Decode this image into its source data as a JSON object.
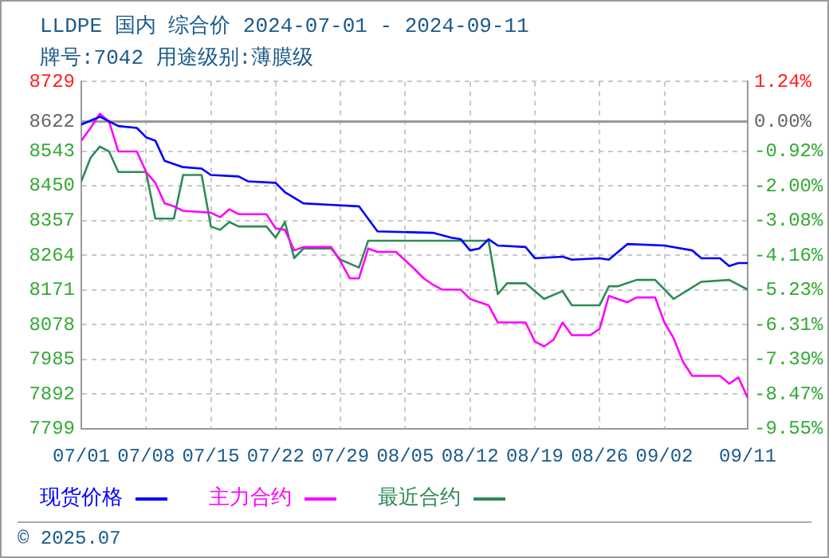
{
  "chart_data": {
    "type": "line",
    "title": "LLDPE 国内 综合价 2024-07-01 - 2024-09-11",
    "subtitle": "牌号:7042 用途级别:薄膜级",
    "ylim": [
      7799,
      8729
    ],
    "yticks": [
      7799,
      7892,
      7985,
      8078,
      8171,
      8264,
      8357,
      8450,
      8543,
      8622,
      8729
    ],
    "y2lim": [
      -9.55,
      1.24
    ],
    "y2ticks": [
      {
        "value": -9.55,
        "label": "-9.55%"
      },
      {
        "value": -8.47,
        "label": "-8.47%"
      },
      {
        "value": -7.39,
        "label": "-7.39%"
      },
      {
        "value": -6.31,
        "label": "-6.31%"
      },
      {
        "value": -5.23,
        "label": "-5.23%"
      },
      {
        "value": -4.16,
        "label": "-4.16%"
      },
      {
        "value": -3.08,
        "label": "-3.08%"
      },
      {
        "value": -2.0,
        "label": "-2.00%"
      },
      {
        "value": -0.92,
        "label": "-0.92%"
      },
      {
        "value": 0,
        "label": "0.00%"
      },
      {
        "value": 1.24,
        "label": "1.24%"
      }
    ],
    "xlim": [
      "--07-01",
      "--09-11"
    ],
    "xticks": [
      {
        "value": "--07-01",
        "label": "07/01"
      },
      {
        "value": "--07-08",
        "label": "07/08"
      },
      {
        "value": "--07-15",
        "label": "07/15"
      },
      {
        "value": "--07-22",
        "label": "07/22"
      },
      {
        "value": "--07-29",
        "label": "07/29"
      },
      {
        "value": "--08-05",
        "label": "08/05"
      },
      {
        "value": "--08-12",
        "label": "08/12"
      },
      {
        "value": "--08-19",
        "label": "08/19"
      },
      {
        "value": "--08-26",
        "label": "08/26"
      },
      {
        "value": "--09-02",
        "label": "09/02"
      },
      {
        "value": "--09-11",
        "label": "09/11"
      }
    ],
    "grid": true,
    "legend": "bottom",
    "marker": "none",
    "line_style": "solid",
    "ref_lines": [
      {
        "axis": "y2",
        "value": 0,
        "color": "#999999"
      }
    ],
    "annotations": [
      "© 2025.07"
    ],
    "series": [
      {
        "name": "现货价格",
        "color": "#0000ff",
        "x": [
          "--07-01",
          "--07-03",
          "--07-05",
          "--07-07",
          "--07-08",
          "--07-09",
          "--07-10",
          "--07-12",
          "--07-14",
          "--07-15",
          "--07-18",
          "--07-19",
          "--07-22",
          "--07-23",
          "--07-25",
          "--07-28",
          "--07-31",
          "--08-02",
          "--08-08",
          "--08-10",
          "--08-11",
          "--08-12",
          "--08-13",
          "--08-14",
          "--08-15",
          "--08-18",
          "--08-19",
          "--08-22",
          "--08-23",
          "--08-26",
          "--08-27",
          "--08-29",
          "--09-02",
          "--09-05",
          "--09-06",
          "--09-08",
          "--09-09",
          "--09-10",
          "--09-11"
        ],
        "values": [
          8614,
          8635,
          8610,
          8605,
          8580,
          8571,
          8517,
          8500,
          8496,
          8479,
          8475,
          8462,
          8458,
          8433,
          8403,
          8399,
          8395,
          8328,
          8324,
          8311,
          8307,
          8277,
          8282,
          8307,
          8290,
          8286,
          8256,
          8260,
          8252,
          8256,
          8252,
          8294,
          8290,
          8277,
          8256,
          8256,
          8235,
          8243,
          8243
        ]
      },
      {
        "name": "主力合约",
        "color": "#ff00ff",
        "x": [
          "--07-01",
          "--07-02",
          "--07-03",
          "--07-04",
          "--07-05",
          "--07-07",
          "--07-08",
          "--07-09",
          "--07-10",
          "--07-11",
          "--07-12",
          "--07-15",
          "--07-16",
          "--07-17",
          "--07-18",
          "--07-21",
          "--07-22",
          "--07-23",
          "--07-24",
          "--07-25",
          "--07-28",
          "--07-29",
          "--07-30",
          "--07-31",
          "--08-01",
          "--08-02",
          "--08-04",
          "--08-06",
          "--08-07",
          "--08-08",
          "--08-09",
          "--08-11",
          "--08-12",
          "--08-14",
          "--08-15",
          "--08-18",
          "--08-19",
          "--08-20",
          "--08-21",
          "--08-22",
          "--08-23",
          "--08-25",
          "--08-26",
          "--08-27",
          "--08-29",
          "--08-30",
          "--09-01",
          "--09-02",
          "--09-03",
          "--09-04",
          "--09-05",
          "--09-08",
          "--09-09",
          "--09-10",
          "--09-11"
        ],
        "values": [
          8571,
          8605,
          8643,
          8622,
          8542,
          8542,
          8487,
          8458,
          8403,
          8395,
          8383,
          8378,
          8366,
          8387,
          8374,
          8374,
          8336,
          8332,
          8277,
          8286,
          8286,
          8248,
          8202,
          8202,
          8282,
          8273,
          8273,
          8227,
          8202,
          8185,
          8172,
          8172,
          8147,
          8130,
          8084,
          8084,
          8033,
          8020,
          8037,
          8084,
          8050,
          8050,
          8067,
          8155,
          8138,
          8151,
          8151,
          8084,
          8042,
          7979,
          7941,
          7941,
          7920,
          7937,
          7882
        ]
      },
      {
        "name": "最近合约",
        "color": "#2e8b57",
        "x": [
          "--07-01",
          "--07-02",
          "--07-03",
          "--07-04",
          "--07-05",
          "--07-08",
          "--07-09",
          "--07-11",
          "--07-12",
          "--07-14",
          "--07-15",
          "--07-16",
          "--07-17",
          "--07-18",
          "--07-21",
          "--07-22",
          "--07-23",
          "--07-24",
          "--07-25",
          "--07-28",
          "--07-29",
          "--07-31",
          "--08-01",
          "--08-14",
          "--08-15",
          "--08-16",
          "--08-18",
          "--08-20",
          "--08-22",
          "--08-23",
          "--08-26",
          "--08-27",
          "--08-28",
          "--08-30",
          "--09-01",
          "--09-03",
          "--09-06",
          "--09-09",
          "--09-11"
        ],
        "values": [
          8462,
          8525,
          8555,
          8542,
          8487,
          8487,
          8362,
          8362,
          8479,
          8479,
          8341,
          8332,
          8353,
          8341,
          8341,
          8311,
          8353,
          8256,
          8282,
          8282,
          8252,
          8231,
          8303,
          8303,
          8160,
          8189,
          8189,
          8147,
          8168,
          8130,
          8130,
          8181,
          8181,
          8198,
          8198,
          8147,
          8193,
          8198,
          8172
        ]
      }
    ]
  }
}
